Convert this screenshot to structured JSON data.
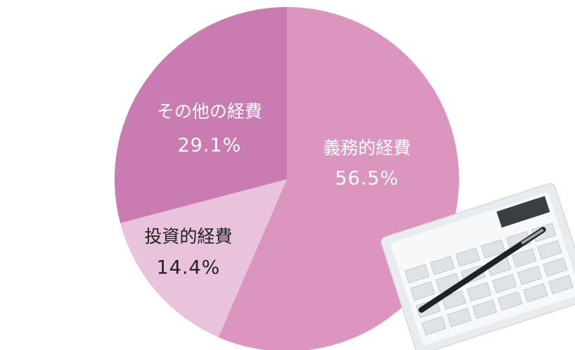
{
  "chart_data": {
    "type": "pie",
    "categories": [
      "義務的経費",
      "投資的経費",
      "その他の経費"
    ],
    "values": [
      56.5,
      14.4,
      29.1
    ],
    "value_labels": [
      "56.5%",
      "14.4%",
      "29.1%"
    ],
    "colors": [
      "#dc95be",
      "#e9c2dc",
      "#c97bb2"
    ]
  }
}
